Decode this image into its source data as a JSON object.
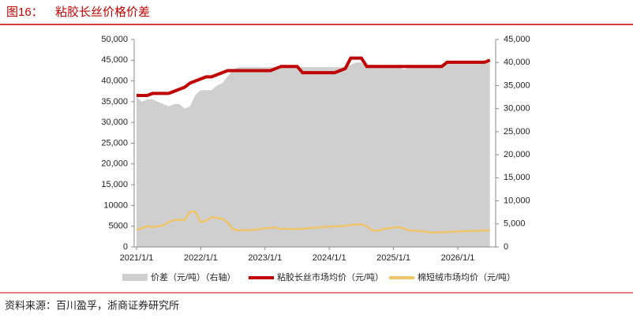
{
  "chart_data": {
    "type": "line",
    "title": "图16：",
    "subtitle": "粘胶长丝价格价差",
    "source": "资料来源：百川盈孚，浙商证券研究所",
    "categories": [
      "2021/1/1",
      null,
      null,
      null,
      null,
      null,
      null,
      null,
      null,
      null,
      null,
      null,
      "2022/1/1",
      null,
      null,
      null,
      null,
      null,
      null,
      null,
      null,
      null,
      null,
      null,
      "2023/1/1",
      null,
      null,
      null,
      null,
      null,
      null,
      null,
      null,
      null,
      null,
      null,
      "2024/1/1",
      null,
      null,
      null,
      null,
      null,
      null,
      null,
      null,
      null,
      null,
      null,
      "2025/1/1",
      null,
      null,
      null,
      null,
      null,
      null,
      null,
      null,
      null,
      null,
      null,
      "2026/1/1",
      null,
      null,
      null,
      null,
      null,
      null
    ],
    "series": [
      {
        "name": "价差（元/吨）（右轴）",
        "kind": "area",
        "axis": "y2",
        "color": "#d0cfcf",
        "values": [
          32500,
          31500,
          32000,
          32000,
          31500,
          31000,
          30500,
          31000,
          31000,
          30000,
          30500,
          33000,
          34000,
          34000,
          34000,
          35000,
          35500,
          37000,
          38500,
          39000,
          39000,
          39000,
          39000,
          39000,
          39000,
          39000,
          39000,
          39000,
          39000,
          39000,
          39000,
          39000,
          39000,
          39000,
          39000,
          39000,
          39000,
          39000,
          39000,
          39000,
          39500,
          40000,
          40000,
          39000,
          39000,
          39000,
          39000,
          39000,
          39000,
          39000,
          38500,
          39000,
          39000,
          39000,
          39000,
          39000,
          39000,
          39000,
          40000,
          40000,
          40000,
          40000,
          40000,
          40000,
          40000,
          40000,
          40000
        ]
      },
      {
        "name": "粘胶长丝市场均价（元/吨）",
        "kind": "line",
        "color": "#c00000",
        "values": [
          36500,
          36500,
          36500,
          37000,
          37000,
          37000,
          37000,
          37500,
          38000,
          38500,
          39500,
          40000,
          40500,
          41000,
          41000,
          41500,
          42000,
          42500,
          42500,
          42500,
          42500,
          42500,
          42500,
          42500,
          42500,
          42500,
          43000,
          43500,
          43500,
          43500,
          43500,
          42000,
          42000,
          42000,
          42000,
          42000,
          42000,
          42000,
          42500,
          43000,
          45500,
          45500,
          45500,
          43500,
          43500,
          43500,
          43500,
          43500,
          43500,
          43500,
          43500,
          43500,
          43500,
          43500,
          43500,
          43500,
          43500,
          43500,
          44500,
          44500,
          44500,
          44500,
          44500,
          44500,
          44500,
          44500,
          45000
        ]
      },
      {
        "name": "棉短绒市场均价（元/吨）",
        "kind": "line",
        "color": "#efc56a",
        "values": [
          4200,
          4500,
          5000,
          4800,
          5000,
          5200,
          6000,
          6500,
          6500,
          6500,
          8500,
          8500,
          6000,
          6300,
          7200,
          7000,
          6800,
          6000,
          4300,
          4000,
          4100,
          4000,
          4200,
          4300,
          4500,
          4600,
          4700,
          4300,
          4400,
          4300,
          4300,
          4400,
          4500,
          4600,
          4700,
          4800,
          4900,
          5000,
          5000,
          5100,
          5300,
          5400,
          5500,
          5000,
          4000,
          3900,
          4300,
          4500,
          4700,
          4800,
          4400,
          4000,
          3900,
          3800,
          3700,
          3500,
          3500,
          3600,
          3600,
          3700,
          3700,
          3800,
          3800,
          3900,
          3900,
          4000,
          4000
        ]
      }
    ],
    "ylim": [
      0,
      50000
    ],
    "yticks": [
      0,
      {
        "value": 5000,
        "label": "5000"
      },
      {
        "value": 10000,
        "label": "10000"
      },
      {
        "value": 15000,
        "label": "15,000"
      },
      {
        "value": 20000,
        "label": "20,000"
      },
      {
        "value": 25000,
        "label": "25,000"
      },
      {
        "value": 30000,
        "label": "30,000"
      },
      {
        "value": 35000,
        "label": "35,000"
      },
      {
        "value": 40000,
        "label": "40,000"
      },
      {
        "value": 45000,
        "label": "45,000"
      },
      {
        "value": 50000,
        "label": "50,000"
      }
    ],
    "y2lim": [
      0,
      45000
    ],
    "y2ticks": [
      0,
      {
        "value": 5000,
        "label": "5,000"
      },
      {
        "value": 10000,
        "label": "10,000"
      },
      {
        "value": 15000,
        "label": "15,000"
      },
      {
        "value": 20000,
        "label": "20,000"
      },
      {
        "value": 25000,
        "label": "25,000"
      },
      {
        "value": 30000,
        "label": "30,000"
      },
      {
        "value": 35000,
        "label": "35,000"
      },
      {
        "value": 40000,
        "label": "40,000"
      },
      {
        "value": 45000,
        "label": "45,000"
      }
    ]
  }
}
